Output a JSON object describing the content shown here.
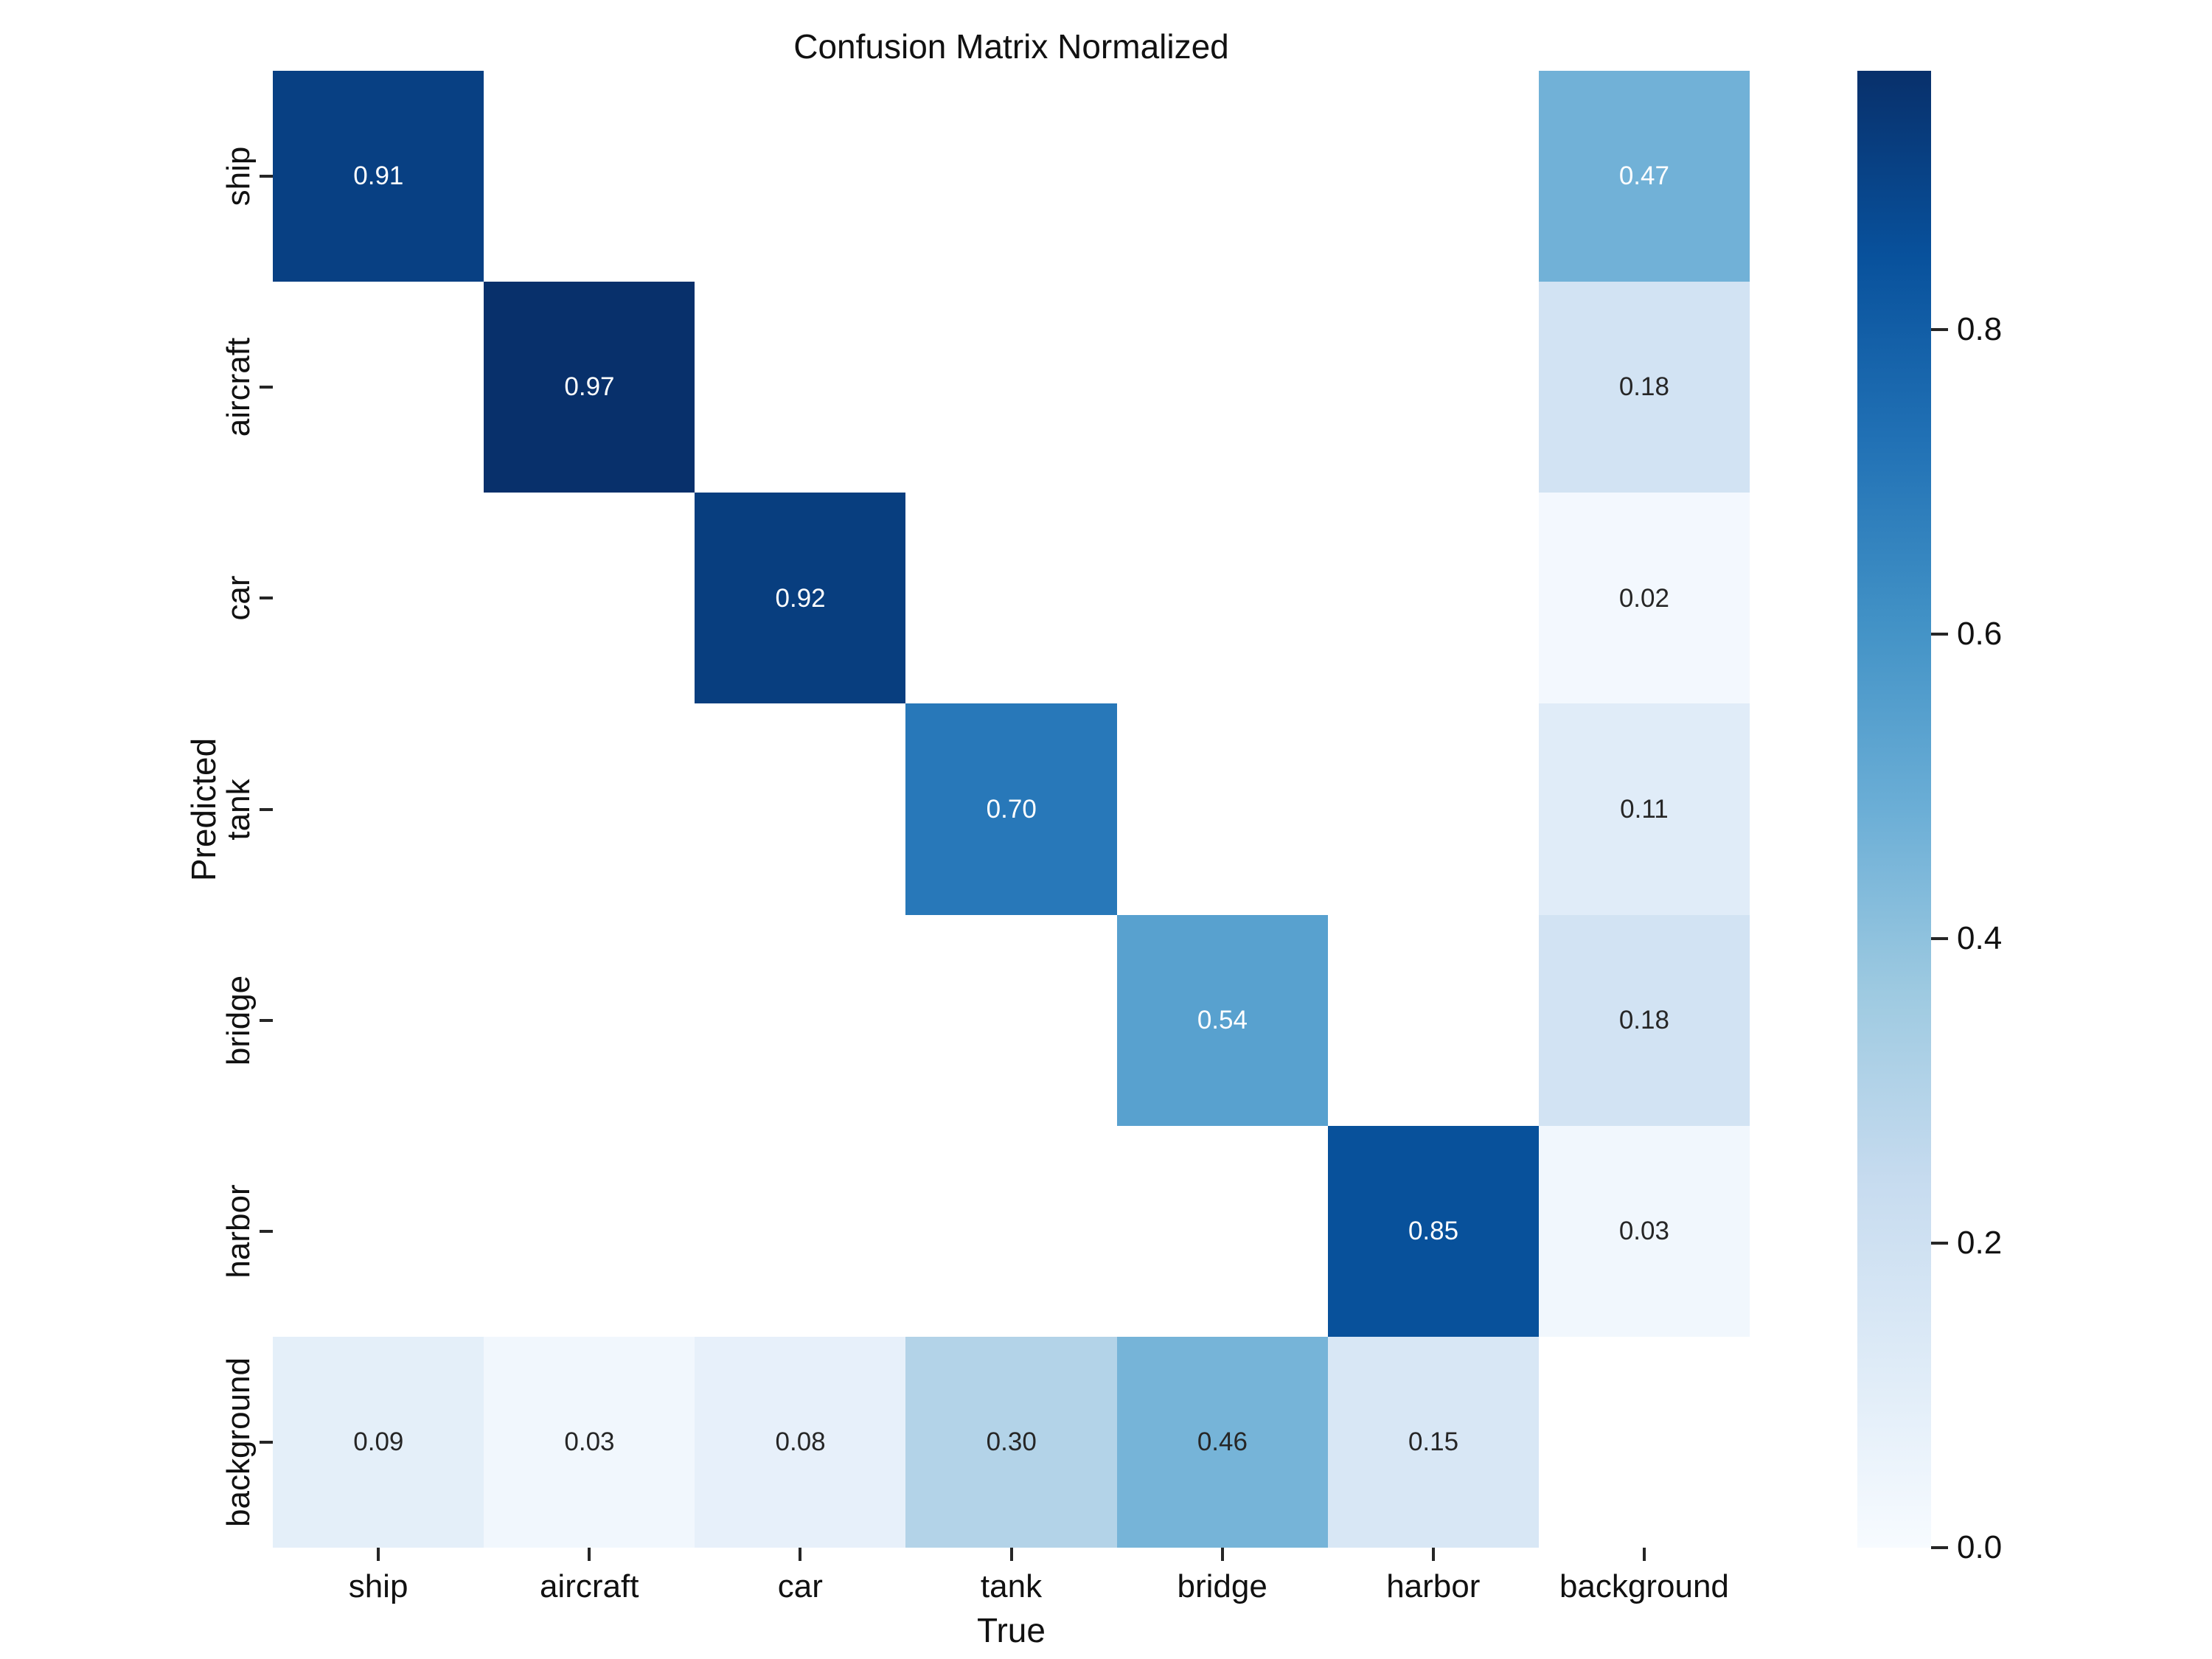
{
  "title": "Confusion Matrix Normalized",
  "chart_data": {
    "type": "heatmap",
    "x_categories": [
      "ship",
      "aircraft",
      "car",
      "tank",
      "bridge",
      "harbor",
      "background"
    ],
    "y_categories": [
      "ship",
      "aircraft",
      "car",
      "tank",
      "bridge",
      "harbor",
      "background"
    ],
    "xlabel": "True",
    "ylabel": "Predicted",
    "matrix": [
      [
        0.91,
        null,
        null,
        null,
        null,
        null,
        0.47
      ],
      [
        null,
        0.97,
        null,
        null,
        null,
        null,
        0.18
      ],
      [
        null,
        null,
        0.92,
        null,
        null,
        null,
        0.02
      ],
      [
        null,
        null,
        null,
        0.7,
        null,
        null,
        0.11
      ],
      [
        null,
        null,
        null,
        null,
        0.54,
        null,
        0.18
      ],
      [
        null,
        null,
        null,
        null,
        null,
        0.85,
        0.03
      ],
      [
        0.09,
        0.03,
        0.08,
        0.3,
        0.46,
        0.15,
        null
      ]
    ],
    "vmin": 0.0,
    "vmax": 0.97,
    "colormap": "Blues",
    "colormap_anchors": [
      "#f7fbff",
      "#deebf7",
      "#c6dbef",
      "#9ecae1",
      "#6baed6",
      "#4292c6",
      "#2171b5",
      "#08519c",
      "#08306b"
    ],
    "masked_cell_color": "#ffffff",
    "annotation_light_text": "#ffffff",
    "annotation_dark_text": "#262626",
    "colorbar_tick_values": [
      0.8,
      0.6,
      0.4,
      0.2,
      0.0
    ],
    "colorbar_tick_labels": [
      "0.8",
      "0.6",
      "0.4",
      "0.2",
      "0.0"
    ],
    "legend_position": "right",
    "grid": false
  }
}
